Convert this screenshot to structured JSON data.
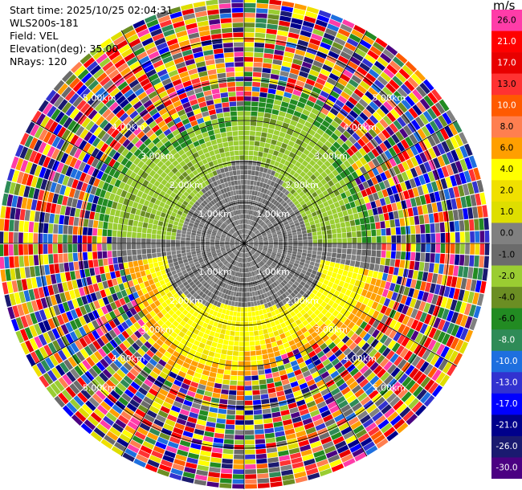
{
  "header": {
    "start_time": "Start time: 2025/10/25 02:04:31",
    "instrument": "WLS200s-181",
    "field": "Field: VEL",
    "elevation": "Elevation(deg): 35.00",
    "nrays": "NRays: 120"
  },
  "colorbar": {
    "unit": "m/s",
    "ticks": [
      "26.0",
      "21.0",
      "17.0",
      "13.0",
      "10.0",
      "8.0",
      "6.0",
      "4.0",
      "2.0",
      "1.0",
      "0.0",
      "-1.0",
      "-2.0",
      "-4.0",
      "-6.0",
      "-8.0",
      "-10.0",
      "-13.0",
      "-17.0",
      "-21.0",
      "-26.0",
      "-30.0"
    ],
    "colors": [
      "#ff3ca8",
      "#ff0000",
      "#e80000",
      "#ff3232",
      "#ff5a00",
      "#ff7f50",
      "#ff9f00",
      "#ffff00",
      "#f0e000",
      "#dede00",
      "#808080",
      "#6b6b6b",
      "#9acd32",
      "#6b8e23",
      "#228b22",
      "#2e8b57",
      "#1e6fdf",
      "#3232d0",
      "#0000ff",
      "#00008b",
      "#1a1a70",
      "#4b0082"
    ]
  },
  "chart_data": {
    "type": "ppi",
    "field": "VEL",
    "units": "m/s",
    "rays": 120,
    "vmin": -30.0,
    "vmax": 30.0,
    "max_range_km": 6.0,
    "ring_labels": [
      {
        "label": "1.00km",
        "range_km": 1.0
      },
      {
        "label": "2.00km",
        "range_km": 2.0
      },
      {
        "label": "3.00km",
        "range_km": 3.0
      },
      {
        "label": "4.00km",
        "range_km": 4.0
      },
      {
        "label": "5.00km",
        "range_km": 5.0
      }
    ],
    "regions": [
      {
        "range_km": [
          0.0,
          1.9
        ],
        "value_ms": -0.5,
        "description": "grey near-zero core"
      },
      {
        "range_km": [
          1.3,
          3.4
        ],
        "sector": "north",
        "value_ms": -1.5
      },
      {
        "range_km": [
          1.3,
          3.4
        ],
        "sector": "south",
        "value_ms": 4.5
      },
      {
        "range_km": [
          3.4,
          6.0
        ],
        "value_ms": "noise"
      }
    ]
  }
}
